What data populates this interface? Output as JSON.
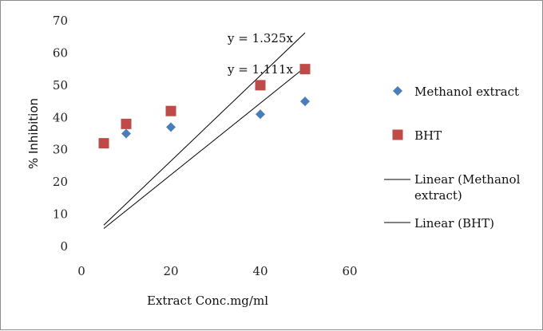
{
  "chart_data": {
    "type": "scatter",
    "xlabel": "Extract Conc.mg/ml",
    "ylabel": "% Inhibition",
    "xlim": [
      0,
      60
    ],
    "ylim": [
      0,
      70
    ],
    "x_ticks": [
      "0",
      "20",
      "40",
      "60"
    ],
    "y_ticks": [
      "0",
      "10",
      "20",
      "30",
      "40",
      "50",
      "60",
      "70"
    ],
    "grid": false,
    "legend_position": "right",
    "series": [
      {
        "name": "Methanol extract",
        "marker": "diamond",
        "color": "#4a7ebb",
        "x": [
          10,
          20,
          40,
          50
        ],
        "y": [
          35,
          37,
          41,
          45
        ]
      },
      {
        "name": "BHT",
        "marker": "square",
        "color": "#be4b48",
        "x": [
          5,
          10,
          20,
          40,
          50
        ],
        "y": [
          32,
          38,
          42,
          50,
          55
        ]
      }
    ],
    "trendlines": [
      {
        "name": "Linear (Methanol extract)",
        "slope": 1.111,
        "equation": "y = 1.111x",
        "x_range": [
          5,
          50
        ],
        "color": "#000000"
      },
      {
        "name": "Linear (BHT)",
        "slope": 1.325,
        "equation": "y = 1.325x",
        "x_range": [
          5,
          50
        ],
        "color": "#000000"
      }
    ]
  }
}
